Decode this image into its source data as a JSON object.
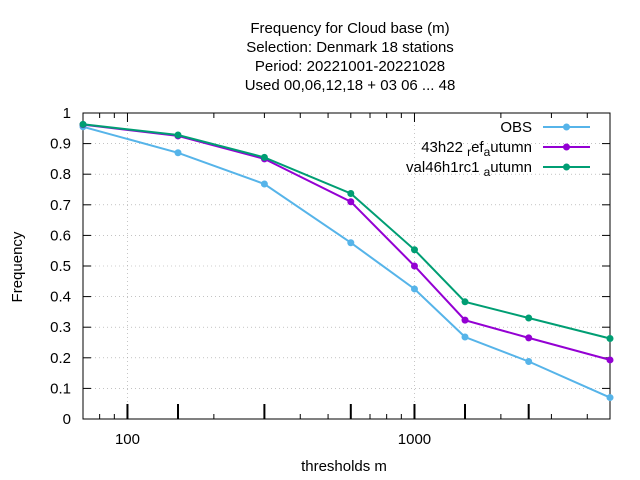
{
  "chart_data": {
    "type": "line",
    "title_lines": [
      "Frequency  for Cloud base (m)",
      "Selection: Denmark     18 stations",
      "Period: 20221001-20221028",
      "Used  00,06,12,18  + 03 06 ... 48"
    ],
    "xlabel": "thresholds m",
    "ylabel": "Frequency",
    "x_scale": "log",
    "xlim": [
      70,
      4800
    ],
    "ylim": [
      0,
      1
    ],
    "x_tick_labels": [
      {
        "value": 100,
        "label": "100"
      },
      {
        "value": 1000,
        "label": "1000"
      }
    ],
    "x_major_ticks": [
      100,
      150,
      300,
      600,
      1000,
      1500,
      2500
    ],
    "y_ticks": [
      0,
      0.1,
      0.2,
      0.3,
      0.4,
      0.5,
      0.6,
      0.7,
      0.8,
      0.9,
      1
    ],
    "y_tick_labels": [
      "0",
      "0.1",
      "0.2",
      "0.3",
      "0.4",
      "0.5",
      "0.6",
      "0.7",
      "0.8",
      "0.9",
      "1"
    ],
    "grid": true,
    "legend_position": "top-right",
    "x": [
      70,
      150,
      300,
      600,
      1000,
      1500,
      2500,
      4800
    ],
    "series": [
      {
        "name": "OBS",
        "color": "#56b4e9",
        "values": [
          0.955,
          0.87,
          0.768,
          0.576,
          0.425,
          0.268,
          0.188,
          0.07
        ]
      },
      {
        "name": "43h22 ref autumn",
        "legend_parts": [
          "43h22 ",
          "r",
          "ef",
          "a",
          "utumn"
        ],
        "color": "#9400d3",
        "values": [
          0.962,
          0.925,
          0.85,
          0.71,
          0.5,
          0.323,
          0.265,
          0.193
        ]
      },
      {
        "name": "val46h1rc1 autumn",
        "legend_parts": [
          "val46h1rc1 ",
          "a",
          "utumn"
        ],
        "color": "#009e73",
        "values": [
          0.963,
          0.928,
          0.855,
          0.737,
          0.553,
          0.383,
          0.33,
          0.263
        ]
      }
    ]
  }
}
